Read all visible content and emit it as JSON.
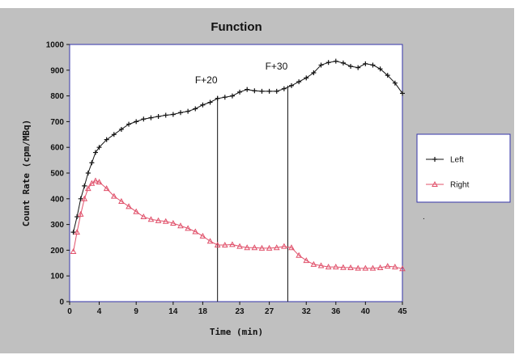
{
  "chart_data": {
    "type": "line",
    "title": "Function",
    "xlabel": "Time (min)",
    "ylabel": "Count Rate (cpm/MBq)",
    "xlim": [
      0,
      45
    ],
    "ylim": [
      0,
      1000
    ],
    "x_ticks": [
      0,
      4,
      9,
      14,
      18,
      23,
      27,
      32,
      36,
      40,
      45
    ],
    "x_tick_labels": [
      "0",
      "4",
      "9",
      "14",
      "18",
      "23",
      "27",
      "32",
      "36",
      "40",
      "45"
    ],
    "y_ticks": [
      0,
      100,
      200,
      300,
      400,
      500,
      600,
      700,
      800,
      900,
      1000
    ],
    "y_tick_labels": [
      "0",
      "100",
      "200",
      "300",
      "400",
      "500",
      "600",
      "700",
      "800",
      "900",
      "1000"
    ],
    "grid": false,
    "legend_position": "right",
    "series": [
      {
        "name": "Left",
        "color": "#111111",
        "marker": "plus",
        "x": [
          0.5,
          1,
          1.5,
          2,
          2.5,
          3,
          3.5,
          4,
          5,
          6,
          7,
          8,
          9,
          10,
          11,
          12,
          13,
          14,
          15,
          16,
          17,
          18,
          19,
          20,
          21,
          22,
          23,
          24,
          25,
          26,
          27,
          28,
          29,
          30,
          31,
          32,
          33,
          34,
          35,
          36,
          37,
          38,
          39,
          40,
          41,
          42,
          43,
          44,
          45
        ],
        "values": [
          270,
          330,
          400,
          450,
          500,
          540,
          580,
          600,
          630,
          650,
          670,
          690,
          700,
          710,
          715,
          720,
          725,
          728,
          735,
          740,
          750,
          765,
          775,
          790,
          795,
          800,
          815,
          825,
          820,
          818,
          818,
          818,
          828,
          840,
          855,
          870,
          890,
          920,
          930,
          935,
          928,
          915,
          910,
          925,
          920,
          905,
          880,
          850,
          810
        ]
      },
      {
        "name": "Right",
        "color": "#e0506a",
        "marker": "triangle",
        "x": [
          0.5,
          1,
          1.5,
          2,
          2.5,
          3,
          3.5,
          4,
          5,
          6,
          7,
          8,
          9,
          10,
          11,
          12,
          13,
          14,
          15,
          16,
          17,
          18,
          19,
          20,
          21,
          22,
          23,
          24,
          25,
          26,
          27,
          28,
          29,
          30,
          31,
          32,
          33,
          34,
          35,
          36,
          37,
          38,
          39,
          40,
          41,
          42,
          43,
          44,
          45
        ],
        "values": [
          195,
          270,
          340,
          400,
          440,
          460,
          470,
          465,
          440,
          410,
          390,
          370,
          350,
          330,
          320,
          315,
          312,
          305,
          295,
          285,
          272,
          255,
          235,
          220,
          220,
          222,
          215,
          210,
          210,
          208,
          208,
          210,
          215,
          210,
          180,
          160,
          145,
          140,
          135,
          135,
          133,
          132,
          130,
          130,
          130,
          132,
          138,
          135,
          128
        ]
      }
    ],
    "annotations": [
      {
        "label": "F+20",
        "x": 20
      },
      {
        "label": "F+30",
        "x": 29.5
      }
    ],
    "colors": {
      "page_background": "#ffffff",
      "figure_background": "#c0c0c0",
      "plot_background": "#ffffff",
      "plot_frame": "#3333aa"
    }
  }
}
